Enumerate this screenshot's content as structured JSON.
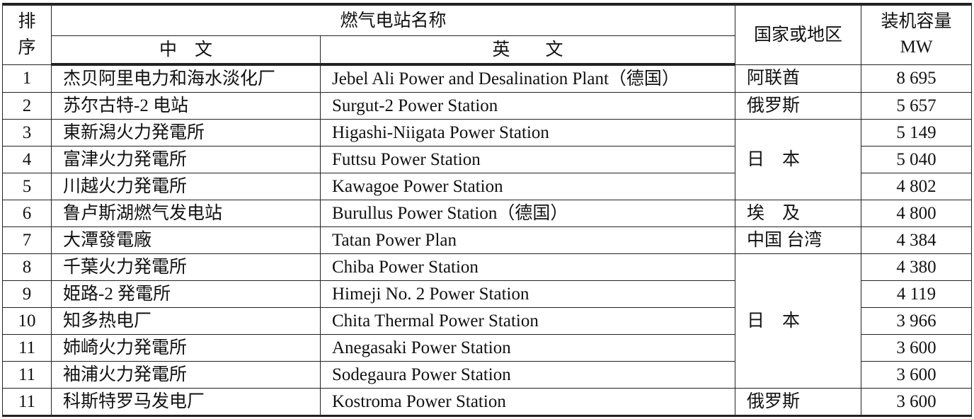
{
  "header": {
    "rank": "排序",
    "rank_line1": "排",
    "rank_line2": "序",
    "station_name": "燃气电站名称",
    "chinese": "中　文",
    "english": "英　　文",
    "country": "国家或地区",
    "capacity_line1": "装机容量",
    "capacity_line2": "MW"
  },
  "rows": [
    {
      "rank": "1",
      "zh": "杰贝阿里电力和海水淡化厂",
      "en": "Jebel Ali Power and Desalination Plant（德国）",
      "country": "阿联酋",
      "mw": "8 695"
    },
    {
      "rank": "2",
      "zh": "苏尔古特-2 电站",
      "en": "Surgut-2 Power Station",
      "country": "俄罗斯",
      "mw": "5 657"
    },
    {
      "rank": "3",
      "zh": "東新潟火力発電所",
      "en": "Higashi-Niigata Power Station",
      "country": "日　本",
      "mw": "5 149"
    },
    {
      "rank": "4",
      "zh": "富津火力発電所",
      "en": "Futtsu Power Station",
      "country": null,
      "mw": "5 040"
    },
    {
      "rank": "5",
      "zh": "川越火力発電所",
      "en": "Kawagoe Power Station",
      "country": null,
      "mw": "4 802"
    },
    {
      "rank": "6",
      "zh": "鲁卢斯湖燃气发电站",
      "en": "Burullus Power Station（德国）",
      "country": "埃　及",
      "mw": "4 800"
    },
    {
      "rank": "7",
      "zh": "大潭發電廠",
      "en": "Tatan Power Plan",
      "country": "中国 台湾",
      "mw": "4 384"
    },
    {
      "rank": "8",
      "zh": "千葉火力発電所",
      "en": "Chiba Power Station",
      "country": "日　本",
      "mw": "4 380"
    },
    {
      "rank": "9",
      "zh": "姫路-2 発電所",
      "en": "Himeji No. 2 Power Station",
      "country": null,
      "mw": "4 119"
    },
    {
      "rank": "10",
      "zh": "知多热电厂",
      "en": "Chita Thermal Power Station",
      "country": null,
      "mw": "3 966"
    },
    {
      "rank": "11",
      "zh": "姉崎火力発電所",
      "en": "Anegasaki Power Station",
      "country": null,
      "mw": "3 600"
    },
    {
      "rank": "11",
      "zh": "袖浦火力発電所",
      "en": "Sodegaura Power Station",
      "country": null,
      "mw": "3 600"
    },
    {
      "rank": "11",
      "zh": "科斯特罗马发电厂",
      "en": "Kostroma Power Station",
      "country": "俄罗斯",
      "mw": "3 600"
    }
  ]
}
